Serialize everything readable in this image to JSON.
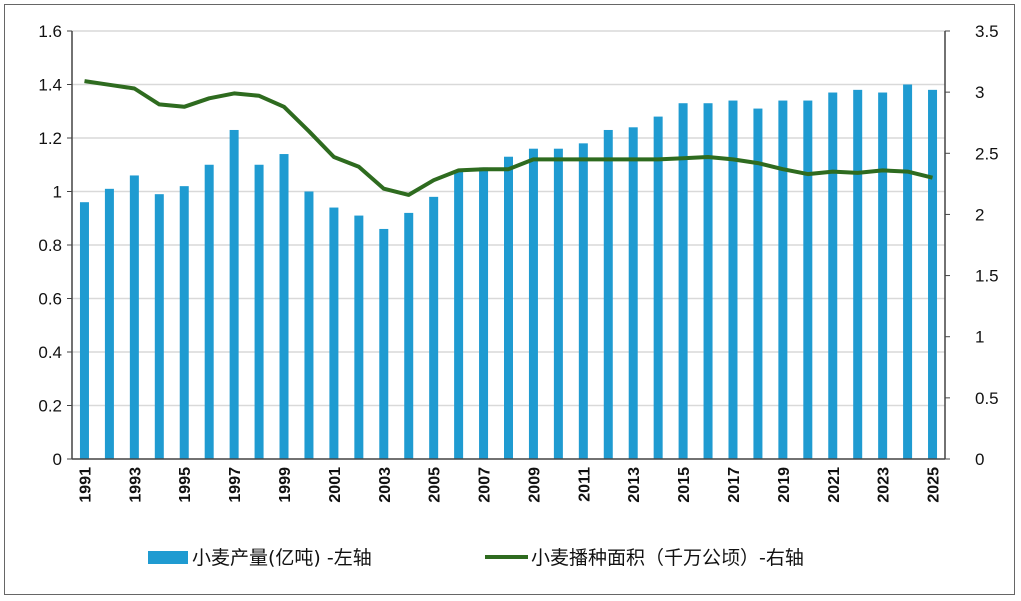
{
  "chart_data": {
    "type": "bar+line",
    "categories": [
      1991,
      1992,
      1993,
      1994,
      1995,
      1996,
      1997,
      1998,
      1999,
      2000,
      2001,
      2002,
      2003,
      2004,
      2005,
      2006,
      2007,
      2008,
      2009,
      2010,
      2011,
      2012,
      2013,
      2014,
      2015,
      2016,
      2017,
      2018,
      2019,
      2020,
      2021,
      2022,
      2023,
      2024,
      2025
    ],
    "x_tick_labels": [
      "1991",
      "1993",
      "1995",
      "1997",
      "1999",
      "2001",
      "2003",
      "2005",
      "2007",
      "2009",
      "2011",
      "2013",
      "2015",
      "2017",
      "2019",
      "2021",
      "2023",
      "2025"
    ],
    "series": [
      {
        "name": "小麦产量(亿吨) -左轴",
        "type": "bar",
        "axis": "left",
        "color": "#1f9bd1",
        "values": [
          0.96,
          1.01,
          1.06,
          0.99,
          1.02,
          1.1,
          1.23,
          1.1,
          1.14,
          1.0,
          0.94,
          0.91,
          0.86,
          0.92,
          0.98,
          1.08,
          1.09,
          1.13,
          1.16,
          1.16,
          1.18,
          1.23,
          1.24,
          1.28,
          1.33,
          1.33,
          1.34,
          1.31,
          1.34,
          1.34,
          1.37,
          1.38,
          1.37,
          1.4,
          1.38
        ]
      },
      {
        "name": "小麦播种面积（千万公顷）-右轴",
        "type": "line",
        "axis": "right",
        "color": "#2e6b1f",
        "values": [
          3.09,
          3.06,
          3.03,
          2.9,
          2.88,
          2.95,
          2.99,
          2.97,
          2.88,
          2.68,
          2.47,
          2.39,
          2.21,
          2.16,
          2.28,
          2.36,
          2.37,
          2.37,
          2.45,
          2.45,
          2.45,
          2.45,
          2.45,
          2.45,
          2.46,
          2.47,
          2.45,
          2.42,
          2.37,
          2.33,
          2.35,
          2.34,
          2.36,
          2.35,
          2.3
        ]
      }
    ],
    "left_axis": {
      "ylim": [
        0,
        1.6
      ],
      "ticks": [
        "0",
        "0.2",
        "0.4",
        "0.6",
        "0.8",
        "1",
        "1.2",
        "1.4",
        "1.6"
      ]
    },
    "right_axis": {
      "ylim": [
        0,
        3.5
      ],
      "ticks": [
        "0",
        "0.5",
        "1",
        "1.5",
        "2",
        "2.5",
        "3",
        "3.5"
      ]
    },
    "grid": true,
    "legend": "bottom"
  }
}
